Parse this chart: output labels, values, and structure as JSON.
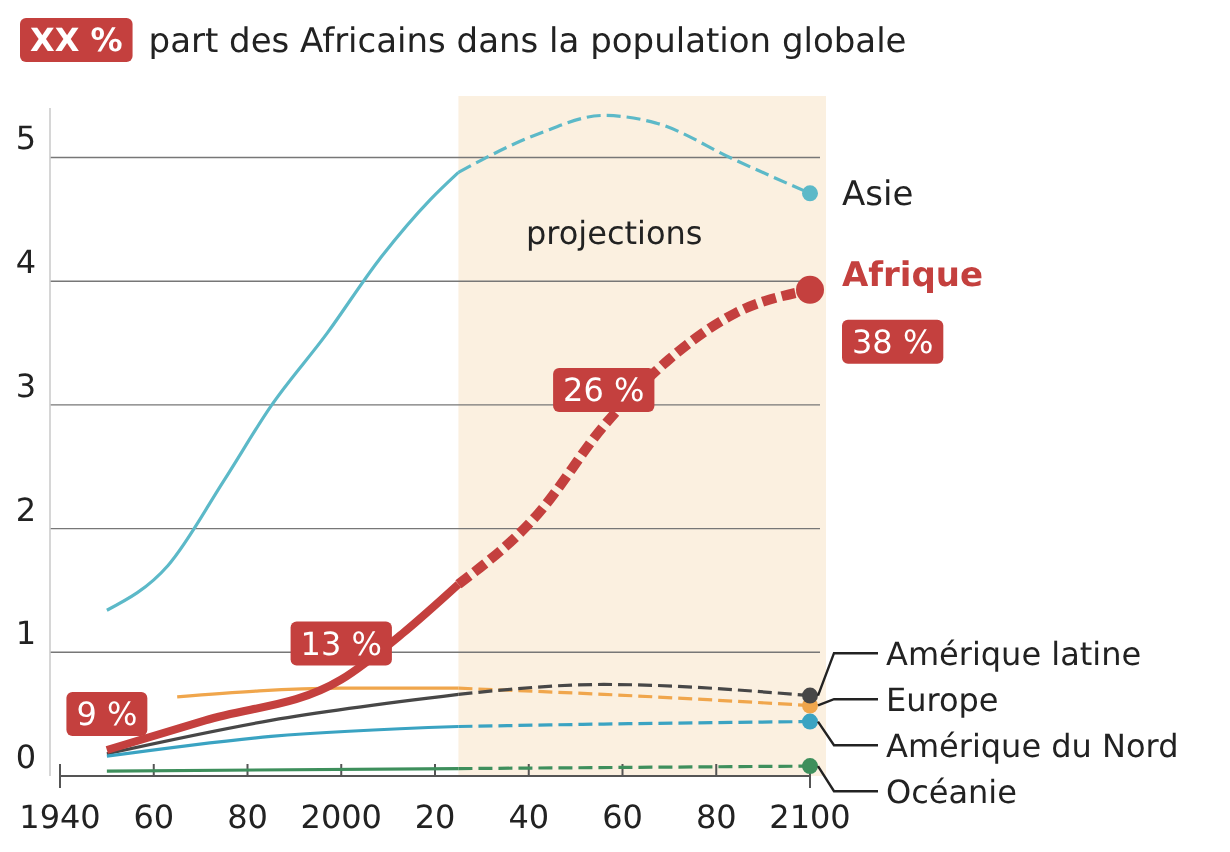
{
  "chart_data": {
    "type": "line",
    "title": "part des Africains dans la population globale",
    "annotations": [
      "XX %",
      {
        "text": "9 %",
        "x": 1950,
        "y": 0.21
      },
      {
        "text": "13 %",
        "x": 2000,
        "y": 0.78
      },
      {
        "text": "26 %",
        "x": 2056,
        "y": 2.83
      },
      {
        "text": "38 %",
        "x": 2100,
        "y": 3.93
      }
    ],
    "xlim": [
      1940,
      2100
    ],
    "xticks": [
      1940,
      {
        "value": 1960,
        "label": "60"
      },
      {
        "value": 1980,
        "label": "80"
      },
      2000,
      {
        "value": 2020,
        "label": "20"
      },
      {
        "value": 2040,
        "label": "40"
      },
      {
        "value": 2060,
        "label": "60"
      },
      {
        "value": 2080,
        "label": "80"
      },
      2100
    ],
    "ylim": [
      0,
      5.4
    ],
    "yticks": [
      0,
      1,
      2,
      3,
      4,
      5
    ],
    "grid": "y",
    "legend": false,
    "bands": [
      {
        "axis": "x",
        "from": 2025,
        "to": 2100,
        "label": "projections",
        "color": "#fbf0e0"
      }
    ],
    "series": [
      {
        "color": "#5cb9c8",
        "line_style": "solid",
        "x": [
          1950,
          1963,
          1975,
          1985,
          1997,
          2008,
          2019,
          2025
        ],
        "values": [
          1.34,
          1.7,
          2.39,
          2.99,
          3.58,
          4.17,
          4.66,
          4.88
        ]
      },
      {
        "name": "Asie",
        "color": "#5cb9c8",
        "line_style": "dashed",
        "x": [
          2025,
          2042,
          2056,
          2067,
          2084,
          2100
        ],
        "values": [
          4.88,
          5.19,
          5.34,
          5.28,
          4.98,
          4.71
        ]
      },
      {
        "color": "#f0a64c",
        "line_style": "solid",
        "x": [
          1965,
          2000,
          2025
        ],
        "values": [
          0.64,
          0.71,
          0.71
        ]
      },
      {
        "name": "Europe",
        "color": "#f0a64c",
        "line_style": "dashed",
        "x": [
          2025,
          2056,
          2100
        ],
        "values": [
          0.71,
          0.66,
          0.57
        ]
      },
      {
        "color": "#474747",
        "line_style": "solid",
        "x": [
          1950,
          1985,
          2025
        ],
        "values": [
          0.18,
          0.45,
          0.66
        ]
      },
      {
        "name": "Amérique latine",
        "color": "#474747",
        "line_style": "dashed",
        "x": [
          2025,
          2056,
          2100
        ],
        "values": [
          0.66,
          0.74,
          0.65
        ]
      },
      {
        "color": "#3aa3c2",
        "line_style": "solid",
        "x": [
          1950,
          1985,
          2025
        ],
        "values": [
          0.16,
          0.32,
          0.4
        ]
      },
      {
        "name": "Amérique du Nord",
        "color": "#3aa3c2",
        "line_style": "dashed",
        "x": [
          2025,
          2056,
          2100
        ],
        "values": [
          0.4,
          0.42,
          0.44
        ]
      },
      {
        "color": "#3e8f5c",
        "line_style": "solid",
        "x": [
          1950,
          2025
        ],
        "values": [
          0.04,
          0.06
        ]
      },
      {
        "name": "Océanie",
        "color": "#3e8f5c",
        "line_style": "dashed",
        "x": [
          2025,
          2100
        ],
        "values": [
          0.06,
          0.08
        ]
      },
      {
        "color": "#c4403e",
        "line_style": "solid",
        "x": [
          1950,
          1971,
          2000,
          2013,
          2025
        ],
        "values": [
          0.21,
          0.45,
          0.78,
          1.15,
          1.55
        ]
      },
      {
        "name": "Afrique",
        "color": "#c4403e",
        "line_style": "dashed",
        "x": [
          2025,
          2042,
          2056,
          2070,
          2084,
          2100
        ],
        "values": [
          1.55,
          2.12,
          2.83,
          3.37,
          3.74,
          3.93
        ]
      }
    ]
  }
}
